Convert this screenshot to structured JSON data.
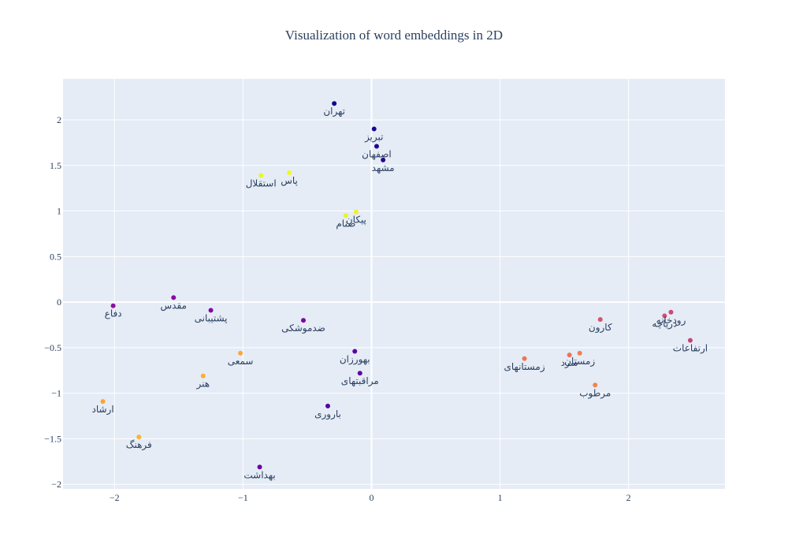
{
  "chart_data": {
    "type": "scatter",
    "title": "Visualization of word embeddings in 2D",
    "xlabel": "",
    "ylabel": "",
    "xlim": [
      -2.4,
      2.75
    ],
    "ylim": [
      -2.05,
      2.45
    ],
    "x_ticks": [
      -2,
      -1,
      0,
      1,
      2
    ],
    "y_ticks": [
      2,
      1.5,
      1,
      0.5,
      0,
      -0.5,
      -1,
      -1.5,
      -2
    ],
    "x_tick_labels": [
      "−2",
      "−1",
      "0",
      "1",
      "2"
    ],
    "y_tick_labels": [
      "2",
      "1.5",
      "1",
      "0.5",
      "0",
      "−0.5",
      "−1",
      "−1.5",
      "−2"
    ],
    "grid": true,
    "background": "#e5ecf6",
    "points": [
      {
        "label": "تهران",
        "x": -0.29,
        "y": 2.18,
        "color": "#0d0887"
      },
      {
        "label": "تبریز",
        "x": 0.02,
        "y": 1.9,
        "color": "#1b068d"
      },
      {
        "label": "اصفهان",
        "x": 0.04,
        "y": 1.71,
        "color": "#22068f"
      },
      {
        "label": "مشهد",
        "x": 0.09,
        "y": 1.56,
        "color": "#2a0593"
      },
      {
        "label": "استقلال",
        "x": -0.86,
        "y": 1.39,
        "color": "#e8f825"
      },
      {
        "label": "پاس",
        "x": -0.64,
        "y": 1.42,
        "color": "#f0f921"
      },
      {
        "label": "پیکان",
        "x": -0.12,
        "y": 0.99,
        "color": "#f2f125"
      },
      {
        "label": "صنام",
        "x": -0.2,
        "y": 0.95,
        "color": "#e7f52a"
      },
      {
        "label": "دفاع",
        "x": -2.01,
        "y": -0.04,
        "color": "#8f0da4"
      },
      {
        "label": "مقدس",
        "x": -1.54,
        "y": 0.05,
        "color": "#8b0aa5"
      },
      {
        "label": "پشتیبانی",
        "x": -1.25,
        "y": -0.09,
        "color": "#8606a6"
      },
      {
        "label": "ضدموشکی",
        "x": -0.53,
        "y": -0.2,
        "color": "#7e03a8"
      },
      {
        "label": "بهورزان",
        "x": -0.13,
        "y": -0.54,
        "color": "#5b01a5"
      },
      {
        "label": "مراقبتهای",
        "x": -0.09,
        "y": -0.78,
        "color": "#5c01a6"
      },
      {
        "label": "باروری",
        "x": -0.34,
        "y": -1.14,
        "color": "#5402a3"
      },
      {
        "label": "بهداشت",
        "x": -0.87,
        "y": -1.81,
        "color": "#6a00a8"
      },
      {
        "label": "سمعی",
        "x": -1.02,
        "y": -0.56,
        "color": "#fca636"
      },
      {
        "label": "هنر",
        "x": -1.31,
        "y": -0.81,
        "color": "#fdad32"
      },
      {
        "label": "ارشاد",
        "x": -2.09,
        "y": -1.09,
        "color": "#fca338"
      },
      {
        "label": "فرهنگ",
        "x": -1.81,
        "y": -1.48,
        "color": "#fbb32f"
      },
      {
        "label": "کارون",
        "x": 1.78,
        "y": -0.19,
        "color": "#d5546e"
      },
      {
        "label": "رودخانه",
        "x": 2.33,
        "y": -0.11,
        "color": "#cc4778"
      },
      {
        "label": "دریاچه",
        "x": 2.28,
        "y": -0.15,
        "color": "#d24e71"
      },
      {
        "label": "ارتفاعات",
        "x": 2.48,
        "y": -0.42,
        "color": "#c6417d"
      },
      {
        "label": "زمستانهای",
        "x": 1.19,
        "y": -0.62,
        "color": "#ec7853"
      },
      {
        "label": "زمستان",
        "x": 1.62,
        "y": -0.56,
        "color": "#f07f4f"
      },
      {
        "label": "سرد",
        "x": 1.54,
        "y": -0.58,
        "color": "#ea7457"
      },
      {
        "label": "مرطوب",
        "x": 1.74,
        "y": -0.91,
        "color": "#f2844b"
      }
    ]
  }
}
